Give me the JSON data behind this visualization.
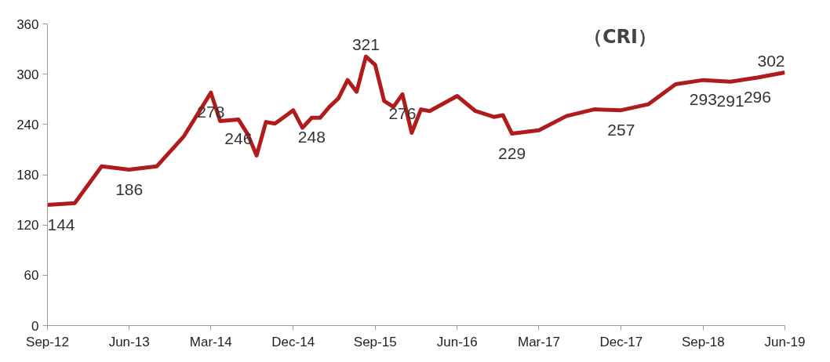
{
  "chart_data": {
    "type": "line",
    "title": "（CRI）",
    "x": [
      "2012-09",
      "2012-12",
      "2013-03",
      "2013-06",
      "2013-09",
      "2013-12",
      "2014-03",
      "2014-04",
      "2014-06",
      "2014-07",
      "2014-08",
      "2014-09",
      "2014-10",
      "2014-11",
      "2014-12",
      "2015-01",
      "2015-02",
      "2015-03",
      "2015-04",
      "2015-05",
      "2015-06",
      "2015-07",
      "2015-08",
      "2015-09",
      "2015-10",
      "2015-11",
      "2015-12",
      "2016-01",
      "2016-02",
      "2016-03",
      "2016-06",
      "2016-08",
      "2016-10",
      "2016-11",
      "2016-12",
      "2017-03",
      "2017-06",
      "2017-09",
      "2017-12",
      "2018-03",
      "2018-06",
      "2018-09",
      "2018-12",
      "2019-03",
      "2019-06"
    ],
    "series": [
      {
        "color": "#b01c1c",
        "values": [
          144,
          146,
          190,
          186,
          190,
          226,
          278,
          244,
          246,
          229,
          203,
          243,
          241,
          249,
          257,
          236,
          248,
          248,
          261,
          271,
          293,
          279,
          321,
          311,
          268,
          261,
          276,
          230,
          258,
          256,
          274,
          256,
          249,
          251,
          229,
          233,
          250,
          258,
          257,
          264,
          288,
          293,
          291,
          296,
          302
        ]
      }
    ],
    "annotations": [
      {
        "text": "144",
        "x": "2012-09",
        "y": 144
      },
      {
        "text": "186",
        "x": "2013-06",
        "y": 186
      },
      {
        "text": "278",
        "x": "2014-03",
        "y": 278
      },
      {
        "text": "246",
        "x": "2014-06",
        "y": 246
      },
      {
        "text": "248",
        "x": "2015-02",
        "y": 248
      },
      {
        "text": "321",
        "x": "2015-08",
        "y": 321
      },
      {
        "text": "276",
        "x": "2015-12",
        "y": 276
      },
      {
        "text": "229",
        "x": "2016-12",
        "y": 229
      },
      {
        "text": "257",
        "x": "2017-12",
        "y": 257
      },
      {
        "text": "293",
        "x": "2018-09",
        "y": 293
      },
      {
        "text": "291",
        "x": "2018-12",
        "y": 291
      },
      {
        "text": "296",
        "x": "2019-03",
        "y": 296
      },
      {
        "text": "302",
        "x": "2019-06",
        "y": 302
      }
    ],
    "xlim": [
      "2012-09",
      "2019-06"
    ],
    "xticks": [
      {
        "value": "2012-09",
        "label": "Sep-12"
      },
      {
        "value": "2013-06",
        "label": "Jun-13"
      },
      {
        "value": "2014-03",
        "label": "Mar-14"
      },
      {
        "value": "2014-12",
        "label": "Dec-14"
      },
      {
        "value": "2015-09",
        "label": "Sep-15"
      },
      {
        "value": "2016-06",
        "label": "Jun-16"
      },
      {
        "value": "2017-03",
        "label": "Mar-17"
      },
      {
        "value": "2017-12",
        "label": "Dec-17"
      },
      {
        "value": "2018-09",
        "label": "Sep-18"
      },
      {
        "value": "2019-06",
        "label": "Jun-19"
      }
    ],
    "ylim": [
      0,
      360
    ],
    "yticks": [
      0,
      60,
      120,
      180,
      240,
      300,
      360
    ],
    "grid": false,
    "marker": "none",
    "line_style": "solid"
  }
}
